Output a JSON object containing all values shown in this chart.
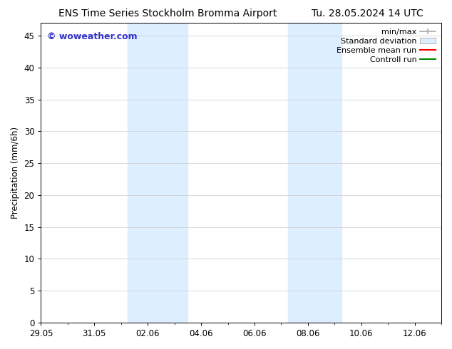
{
  "title_left": "ENS Time Series Stockholm Bromma Airport",
  "title_right": "Tu. 28.05.2024 14 UTC",
  "ylabel": "Precipitation (mm/6h)",
  "watermark": "© woweather.com",
  "watermark_color": "#3333cc",
  "ylim": [
    0,
    47
  ],
  "yticks": [
    0,
    5,
    10,
    15,
    20,
    25,
    30,
    35,
    40,
    45
  ],
  "xtick_labels": [
    "29.05",
    "31.05",
    "02.06",
    "04.06",
    "06.06",
    "08.06",
    "10.06",
    "12.06"
  ],
  "xtick_positions_days": [
    0,
    2,
    4,
    6,
    8,
    10,
    12,
    14
  ],
  "total_days": 15,
  "shaded_bands": [
    {
      "x_start_day": 3.25,
      "x_end_day": 5.5
    },
    {
      "x_start_day": 9.25,
      "x_end_day": 11.25
    }
  ],
  "shade_color": "#ddeeff",
  "background_color": "#ffffff",
  "grid_color": "#cccccc",
  "legend_labels": [
    "min/max",
    "Standard deviation",
    "Ensemble mean run",
    "Controll run"
  ],
  "legend_colors_line": [
    "#aaaaaa",
    "#bbccdd",
    "#ff0000",
    "#008800"
  ],
  "title_fontsize": 10,
  "tick_label_fontsize": 8.5,
  "ylabel_fontsize": 8.5,
  "legend_fontsize": 8,
  "watermark_fontsize": 9
}
